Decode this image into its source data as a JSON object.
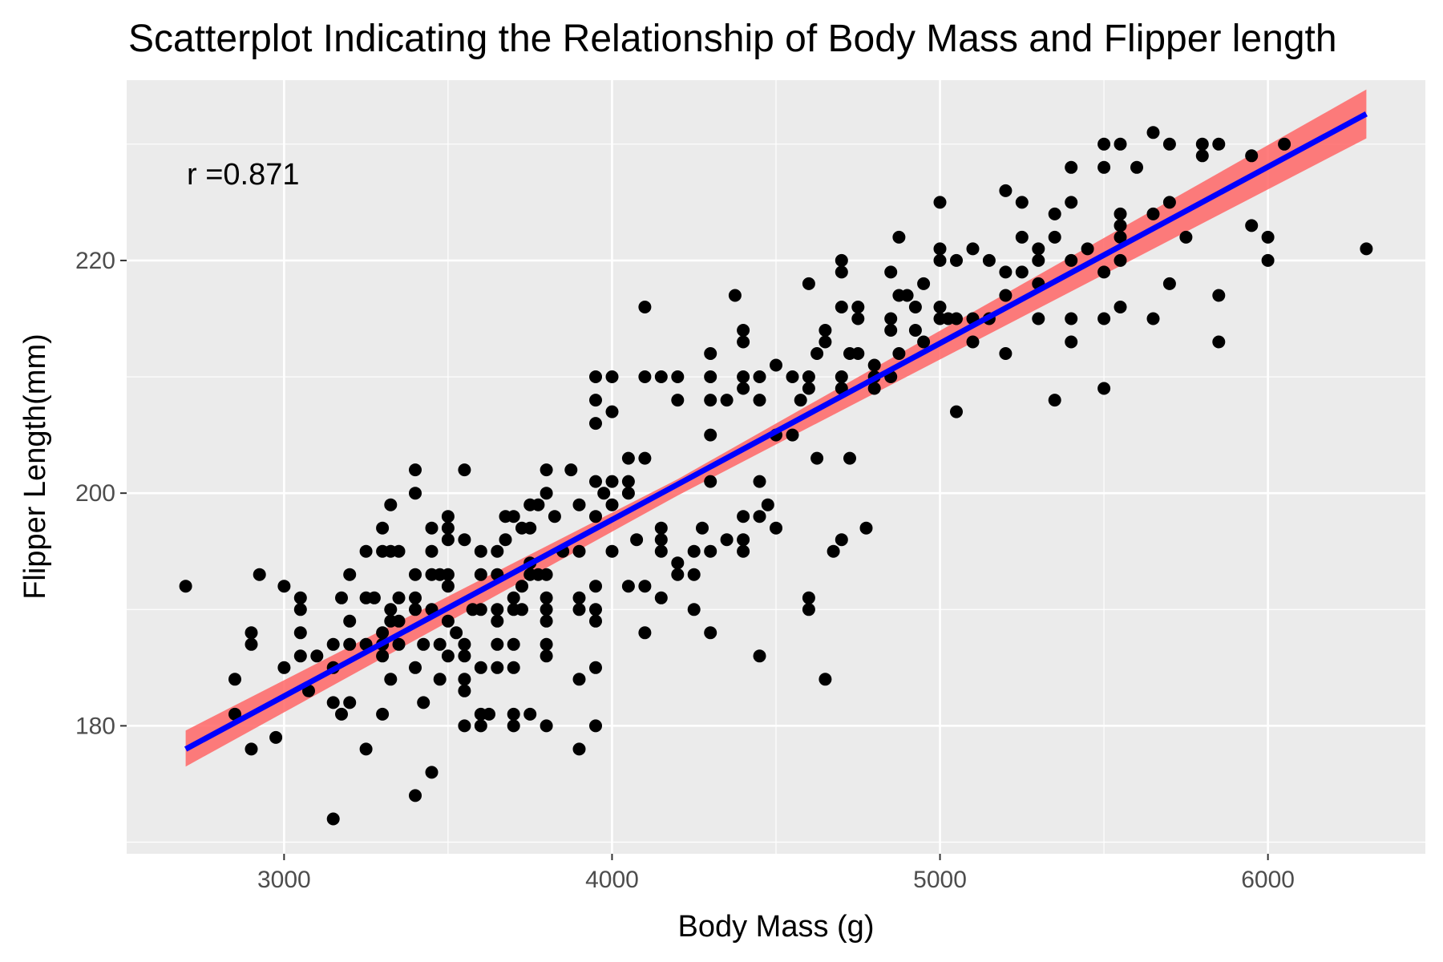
{
  "chart_data": {
    "type": "scatter",
    "title": "Scatterplot Indicating the Relationship of Body Mass and Flipper length",
    "xlabel": "Body Mass (g)",
    "ylabel": "Flipper Length(mm)",
    "xlim": [
      2520,
      6480
    ],
    "ylim": [
      169,
      235.5
    ],
    "x_ticks": [
      3000,
      4000,
      5000,
      6000
    ],
    "y_ticks": [
      180,
      200,
      220
    ],
    "x_tick_labels": [
      "3000",
      "4000",
      "5000",
      "6000"
    ],
    "y_tick_labels": [
      "180",
      "200",
      "220"
    ],
    "grid": true,
    "annotation": {
      "text": "r =0.871",
      "x": 2700,
      "y": 230
    },
    "colors": {
      "panel": "#ebebeb",
      "grid": "#ffffff",
      "points": "#000000",
      "fit_line": "#0000ff",
      "confidence_band": "#ff6666"
    },
    "fit_line": {
      "x": [
        2700,
        6300
      ],
      "y": [
        178.0,
        232.6
      ]
    },
    "confidence_band": {
      "x": [
        2700,
        4200,
        6300
      ],
      "lower": [
        176.5,
        199.8,
        230.5
      ],
      "upper": [
        179.6,
        201.2,
        234.7
      ]
    },
    "series": [
      {
        "points": [
          [
            2700,
            192
          ],
          [
            2850,
            184
          ],
          [
            2850,
            181
          ],
          [
            2900,
            188
          ],
          [
            2900,
            187
          ],
          [
            2900,
            178
          ],
          [
            2925,
            193
          ],
          [
            2975,
            179
          ],
          [
            3000,
            192
          ],
          [
            3000,
            185
          ],
          [
            3050,
            191
          ],
          [
            3050,
            190
          ],
          [
            3050,
            188
          ],
          [
            3050,
            186
          ],
          [
            3075,
            183
          ],
          [
            3100,
            186
          ],
          [
            3150,
            185
          ],
          [
            3150,
            187
          ],
          [
            3150,
            182
          ],
          [
            3150,
            172
          ],
          [
            3175,
            191
          ],
          [
            3175,
            181
          ],
          [
            3200,
            193
          ],
          [
            3200,
            189
          ],
          [
            3200,
            187
          ],
          [
            3200,
            182
          ],
          [
            3250,
            195
          ],
          [
            3250,
            191
          ],
          [
            3250,
            187
          ],
          [
            3250,
            178
          ],
          [
            3275,
            191
          ],
          [
            3300,
            197
          ],
          [
            3300,
            195
          ],
          [
            3300,
            188
          ],
          [
            3300,
            187
          ],
          [
            3300,
            186
          ],
          [
            3300,
            181
          ],
          [
            3325,
            199
          ],
          [
            3325,
            195
          ],
          [
            3325,
            190
          ],
          [
            3325,
            189
          ],
          [
            3325,
            184
          ],
          [
            3350,
            195
          ],
          [
            3350,
            191
          ],
          [
            3350,
            189
          ],
          [
            3350,
            187
          ],
          [
            3400,
            202
          ],
          [
            3400,
            200
          ],
          [
            3400,
            193
          ],
          [
            3400,
            191
          ],
          [
            3400,
            190
          ],
          [
            3400,
            185
          ],
          [
            3400,
            174
          ],
          [
            3425,
            187
          ],
          [
            3425,
            182
          ],
          [
            3450,
            197
          ],
          [
            3450,
            195
          ],
          [
            3450,
            193
          ],
          [
            3450,
            190
          ],
          [
            3450,
            176
          ],
          [
            3475,
            193
          ],
          [
            3475,
            187
          ],
          [
            3475,
            184
          ],
          [
            3500,
            198
          ],
          [
            3500,
            197
          ],
          [
            3500,
            196
          ],
          [
            3500,
            193
          ],
          [
            3500,
            192
          ],
          [
            3500,
            189
          ],
          [
            3500,
            186
          ],
          [
            3525,
            188
          ],
          [
            3550,
            202
          ],
          [
            3550,
            196
          ],
          [
            3550,
            187
          ],
          [
            3550,
            186
          ],
          [
            3550,
            184
          ],
          [
            3550,
            183
          ],
          [
            3550,
            180
          ],
          [
            3575,
            190
          ],
          [
            3600,
            195
          ],
          [
            3600,
            193
          ],
          [
            3600,
            190
          ],
          [
            3600,
            185
          ],
          [
            3600,
            181
          ],
          [
            3600,
            180
          ],
          [
            3625,
            181
          ],
          [
            3650,
            195
          ],
          [
            3650,
            193
          ],
          [
            3650,
            190
          ],
          [
            3650,
            189
          ],
          [
            3650,
            187
          ],
          [
            3650,
            185
          ],
          [
            3675,
            198
          ],
          [
            3675,
            196
          ],
          [
            3700,
            198
          ],
          [
            3700,
            191
          ],
          [
            3700,
            190
          ],
          [
            3700,
            187
          ],
          [
            3700,
            185
          ],
          [
            3700,
            181
          ],
          [
            3700,
            180
          ],
          [
            3725,
            197
          ],
          [
            3725,
            192
          ],
          [
            3725,
            190
          ],
          [
            3750,
            199
          ],
          [
            3750,
            197
          ],
          [
            3750,
            194
          ],
          [
            3750,
            193
          ],
          [
            3750,
            181
          ],
          [
            3775,
            199
          ],
          [
            3775,
            193
          ],
          [
            3800,
            202
          ],
          [
            3800,
            200
          ],
          [
            3800,
            193
          ],
          [
            3800,
            191
          ],
          [
            3800,
            190
          ],
          [
            3800,
            189
          ],
          [
            3800,
            187
          ],
          [
            3800,
            186
          ],
          [
            3800,
            180
          ],
          [
            3825,
            198
          ],
          [
            3850,
            195
          ],
          [
            3875,
            202
          ],
          [
            3900,
            199
          ],
          [
            3900,
            195
          ],
          [
            3900,
            191
          ],
          [
            3900,
            190
          ],
          [
            3900,
            184
          ],
          [
            3900,
            178
          ],
          [
            3950,
            210
          ],
          [
            3950,
            208
          ],
          [
            3950,
            206
          ],
          [
            3950,
            201
          ],
          [
            3950,
            198
          ],
          [
            3950,
            192
          ],
          [
            3950,
            190
          ],
          [
            3950,
            189
          ],
          [
            3950,
            185
          ],
          [
            3950,
            180
          ],
          [
            3975,
            200
          ],
          [
            4000,
            210
          ],
          [
            4000,
            207
          ],
          [
            4000,
            201
          ],
          [
            4000,
            199
          ],
          [
            4000,
            195
          ],
          [
            4050,
            203
          ],
          [
            4050,
            201
          ],
          [
            4050,
            200
          ],
          [
            4050,
            192
          ],
          [
            4075,
            196
          ],
          [
            4100,
            216
          ],
          [
            4100,
            210
          ],
          [
            4100,
            203
          ],
          [
            4100,
            192
          ],
          [
            4100,
            188
          ],
          [
            4150,
            210
          ],
          [
            4150,
            197
          ],
          [
            4150,
            196
          ],
          [
            4150,
            195
          ],
          [
            4150,
            191
          ],
          [
            4200,
            210
          ],
          [
            4200,
            208
          ],
          [
            4200,
            194
          ],
          [
            4200,
            193
          ],
          [
            4250,
            195
          ],
          [
            4250,
            193
          ],
          [
            4250,
            190
          ],
          [
            4275,
            197
          ],
          [
            4300,
            212
          ],
          [
            4300,
            210
          ],
          [
            4300,
            208
          ],
          [
            4300,
            205
          ],
          [
            4300,
            201
          ],
          [
            4300,
            195
          ],
          [
            4300,
            188
          ],
          [
            4350,
            208
          ],
          [
            4350,
            196
          ],
          [
            4375,
            217
          ],
          [
            4400,
            214
          ],
          [
            4400,
            213
          ],
          [
            4400,
            210
          ],
          [
            4400,
            209
          ],
          [
            4400,
            198
          ],
          [
            4400,
            196
          ],
          [
            4400,
            195
          ],
          [
            4450,
            210
          ],
          [
            4450,
            208
          ],
          [
            4450,
            201
          ],
          [
            4450,
            198
          ],
          [
            4450,
            186
          ],
          [
            4475,
            199
          ],
          [
            4500,
            211
          ],
          [
            4500,
            205
          ],
          [
            4500,
            197
          ],
          [
            4550,
            210
          ],
          [
            4550,
            205
          ],
          [
            4575,
            208
          ],
          [
            4600,
            218
          ],
          [
            4600,
            210
          ],
          [
            4600,
            209
          ],
          [
            4600,
            191
          ],
          [
            4600,
            190
          ],
          [
            4625,
            212
          ],
          [
            4625,
            203
          ],
          [
            4650,
            214
          ],
          [
            4650,
            213
          ],
          [
            4650,
            184
          ],
          [
            4675,
            195
          ],
          [
            4700,
            220
          ],
          [
            4700,
            219
          ],
          [
            4700,
            216
          ],
          [
            4700,
            210
          ],
          [
            4700,
            209
          ],
          [
            4700,
            196
          ],
          [
            4725,
            212
          ],
          [
            4725,
            203
          ],
          [
            4750,
            216
          ],
          [
            4750,
            215
          ],
          [
            4750,
            212
          ],
          [
            4775,
            197
          ],
          [
            4800,
            211
          ],
          [
            4800,
            210
          ],
          [
            4800,
            209
          ],
          [
            4850,
            219
          ],
          [
            4850,
            215
          ],
          [
            4850,
            214
          ],
          [
            4850,
            210
          ],
          [
            4875,
            222
          ],
          [
            4875,
            217
          ],
          [
            4875,
            212
          ],
          [
            4900,
            217
          ],
          [
            4925,
            216
          ],
          [
            4925,
            214
          ],
          [
            4950,
            218
          ],
          [
            4950,
            213
          ],
          [
            5000,
            225
          ],
          [
            5000,
            221
          ],
          [
            5000,
            220
          ],
          [
            5000,
            216
          ],
          [
            5000,
            215
          ],
          [
            5025,
            215
          ],
          [
            5050,
            220
          ],
          [
            5050,
            215
          ],
          [
            5050,
            207
          ],
          [
            5100,
            221
          ],
          [
            5100,
            215
          ],
          [
            5100,
            213
          ],
          [
            5150,
            220
          ],
          [
            5150,
            215
          ],
          [
            5200,
            226
          ],
          [
            5200,
            219
          ],
          [
            5200,
            217
          ],
          [
            5200,
            212
          ],
          [
            5250,
            225
          ],
          [
            5250,
            222
          ],
          [
            5250,
            219
          ],
          [
            5300,
            221
          ],
          [
            5300,
            220
          ],
          [
            5300,
            218
          ],
          [
            5300,
            215
          ],
          [
            5350,
            224
          ],
          [
            5350,
            222
          ],
          [
            5350,
            208
          ],
          [
            5400,
            228
          ],
          [
            5400,
            225
          ],
          [
            5400,
            220
          ],
          [
            5400,
            215
          ],
          [
            5400,
            213
          ],
          [
            5450,
            221
          ],
          [
            5500,
            230
          ],
          [
            5500,
            228
          ],
          [
            5500,
            219
          ],
          [
            5500,
            215
          ],
          [
            5500,
            209
          ],
          [
            5550,
            230
          ],
          [
            5550,
            224
          ],
          [
            5550,
            223
          ],
          [
            5550,
            222
          ],
          [
            5550,
            220
          ],
          [
            5550,
            216
          ],
          [
            5600,
            228
          ],
          [
            5650,
            231
          ],
          [
            5650,
            224
          ],
          [
            5650,
            215
          ],
          [
            5700,
            230
          ],
          [
            5700,
            225
          ],
          [
            5700,
            218
          ],
          [
            5750,
            222
          ],
          [
            5800,
            230
          ],
          [
            5800,
            229
          ],
          [
            5850,
            230
          ],
          [
            5850,
            217
          ],
          [
            5850,
            213
          ],
          [
            5950,
            229
          ],
          [
            5950,
            223
          ],
          [
            6000,
            222
          ],
          [
            6000,
            220
          ],
          [
            6050,
            230
          ],
          [
            6300,
            221
          ]
        ]
      }
    ]
  }
}
